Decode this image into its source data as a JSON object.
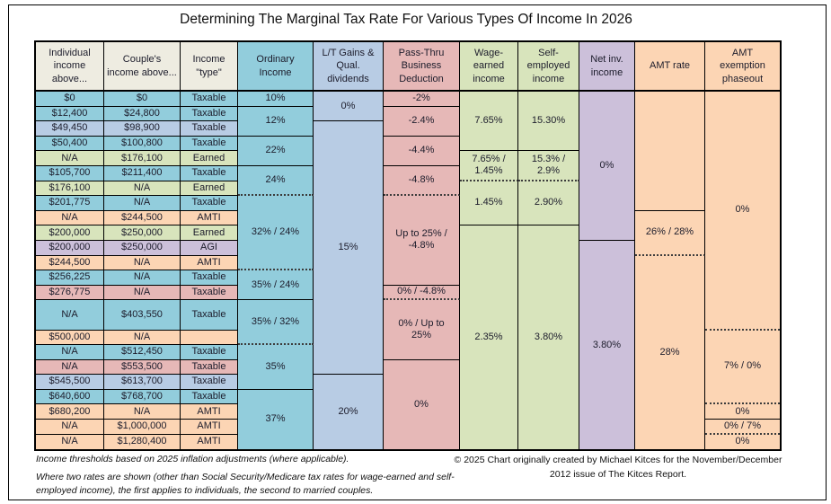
{
  "chart_data": {
    "type": "table",
    "title": "Determining The Marginal Tax Rate For Various Types Of Income In 2026",
    "columns": [
      {
        "name": "individual-income-above",
        "label": "Individual\nincome\nabove...",
        "color_key": "beige"
      },
      {
        "name": "couples-income-above",
        "label": "Couple's\nincome above...",
        "color_key": "beige"
      },
      {
        "name": "income-type",
        "label": "Income\n\"type\"",
        "color_key": "beige"
      },
      {
        "name": "ordinary-income",
        "label": "Ordinary\nIncome",
        "color_key": "teal"
      },
      {
        "name": "lt-gains-qual-dividends",
        "label": "L/T Gains &\nQual.\ndividends",
        "color_key": "blue"
      },
      {
        "name": "pass-thru-business-deduction",
        "label": "Pass-Thru\nBusiness\nDeduction",
        "color_key": "rose"
      },
      {
        "name": "wage-earned-income",
        "label": "Wage-\nearned\nincome",
        "color_key": "green"
      },
      {
        "name": "self-employed-income",
        "label": "Self-\nemployed\nincome",
        "color_key": "green"
      },
      {
        "name": "net-inv-income",
        "label": "Net inv.\nincome",
        "color_key": "purple"
      },
      {
        "name": "amt-rate",
        "label": "AMT rate",
        "color_key": "orange"
      },
      {
        "name": "amt-exemption-phaseout",
        "label": "AMT\nexemption\nphaseout",
        "color_key": "orange"
      }
    ],
    "income_rows": [
      {
        "individual": "$0",
        "couple": "$0",
        "type": "Taxable",
        "color_key": "teal",
        "units": 1
      },
      {
        "individual": "$12,400",
        "couple": "$24,800",
        "type": "Taxable",
        "color_key": "teal",
        "units": 1
      },
      {
        "individual": "$49,450",
        "couple": "$98,900",
        "type": "Taxable",
        "color_key": "blue",
        "units": 1
      },
      {
        "individual": "$50,400",
        "couple": "$100,800",
        "type": "Taxable",
        "color_key": "teal",
        "units": 1
      },
      {
        "individual": "N/A",
        "couple": "$176,100",
        "type": "Earned",
        "color_key": "green",
        "units": 1
      },
      {
        "individual": "$105,700",
        "couple": "$211,400",
        "type": "Taxable",
        "color_key": "teal",
        "units": 1
      },
      {
        "individual": "$176,100",
        "couple": "N/A",
        "type": "Earned",
        "color_key": "green",
        "units": 1
      },
      {
        "individual": "$201,775",
        "couple": "N/A",
        "type": "Taxable",
        "color_key": "teal",
        "units": 1
      },
      {
        "individual": "N/A",
        "couple": "$244,500",
        "type": "AMTI",
        "color_key": "orange",
        "units": 1
      },
      {
        "individual": "$200,000",
        "couple": "$250,000",
        "type": "Earned",
        "color_key": "green",
        "units": 1
      },
      {
        "individual": "$200,000",
        "couple": "$250,000",
        "type": "AGI",
        "color_key": "purple",
        "units": 1
      },
      {
        "individual": "$244,500",
        "couple": "N/A",
        "type": "AMTI",
        "color_key": "orange",
        "units": 1
      },
      {
        "individual": "$256,225",
        "couple": "N/A",
        "type": "Taxable",
        "color_key": "teal",
        "units": 1
      },
      {
        "individual": "$276,775",
        "couple": "N/A",
        "type": "Taxable",
        "color_key": "rose",
        "units": 1
      },
      {
        "individual": "N/A",
        "couple": "$403,550",
        "type": "Taxable",
        "color_key": "teal",
        "units": 2
      },
      {
        "individual": "$500,000",
        "couple": "N/A",
        "type": "",
        "color_key": "orange",
        "units": 1
      },
      {
        "individual": "N/A",
        "couple": "$512,450",
        "type": "Taxable",
        "color_key": "teal",
        "units": 1
      },
      {
        "individual": "N/A",
        "couple": "$553,500",
        "type": "Taxable",
        "color_key": "rose",
        "units": 1
      },
      {
        "individual": "$545,500",
        "couple": "$613,700",
        "type": "Taxable",
        "color_key": "blue",
        "units": 1
      },
      {
        "individual": "$640,600",
        "couple": "$768,700",
        "type": "Taxable",
        "color_key": "teal",
        "units": 1
      },
      {
        "individual": "$680,200",
        "couple": "N/A",
        "type": "AMTI",
        "color_key": "orange",
        "units": 1
      },
      {
        "individual": "N/A",
        "couple": "$1,000,000",
        "type": "AMTI",
        "color_key": "orange",
        "units": 1
      },
      {
        "individual": "N/A",
        "couple": "$1,280,400",
        "type": "AMTI",
        "color_key": "orange",
        "units": 1
      }
    ],
    "rate_columns": [
      {
        "name": "ordinary-income",
        "col": 4,
        "color_key": "teal",
        "cells": [
          {
            "text": "10%",
            "span": 1
          },
          {
            "text": "12%",
            "span": 2
          },
          {
            "text": "22%",
            "span": 2
          },
          {
            "text": "24%",
            "span": 2,
            "dotted_bottom": true
          },
          {
            "text": "32% / 24%",
            "span": 5,
            "dotted_bottom": true
          },
          {
            "text": "35% / 24%",
            "span": 2
          },
          {
            "text": "35% / 32%",
            "span": 3,
            "dotted_bottom": true
          },
          {
            "text": "35%",
            "span": 3
          },
          {
            "text": "37%",
            "span": 4
          }
        ]
      },
      {
        "name": "lt-gains",
        "col": 5,
        "color_key": "blue",
        "cells": [
          {
            "text": "0%",
            "span": 2
          },
          {
            "text": "15%",
            "span": 17
          },
          {
            "text": "20%",
            "span": 5
          }
        ]
      },
      {
        "name": "pass-thru",
        "col": 6,
        "color_key": "rose",
        "cells": [
          {
            "text": "-2%",
            "span": 1
          },
          {
            "text": "-2.4%",
            "span": 2
          },
          {
            "text": "-4.4%",
            "span": 2
          },
          {
            "text": "-4.8%",
            "span": 2,
            "dotted_bottom": true
          },
          {
            "text": "Up to 25% /\n-4.8%",
            "span": 6
          },
          {
            "text": "0% / -4.8%",
            "span": 1,
            "dotted_bottom": true
          },
          {
            "text": "0% / Up to\n25%",
            "span": 4
          },
          {
            "text": "0%",
            "span": 6
          }
        ]
      },
      {
        "name": "wage-earned",
        "col": 7,
        "color_key": "green",
        "cells": [
          {
            "text": "7.65%",
            "span": 4
          },
          {
            "text": "7.65% /\n1.45%",
            "span": 2,
            "dotted_bottom": true
          },
          {
            "text": "1.45%",
            "span": 3
          },
          {
            "text": "2.35%",
            "span": 15
          }
        ]
      },
      {
        "name": "self-employed",
        "col": 8,
        "color_key": "green",
        "cells": [
          {
            "text": "15.30%",
            "span": 4
          },
          {
            "text": "15.3% /\n2.9%",
            "span": 2,
            "dotted_bottom": true
          },
          {
            "text": "2.90%",
            "span": 3
          },
          {
            "text": "3.80%",
            "span": 15
          }
        ]
      },
      {
        "name": "net-inv",
        "col": 9,
        "color_key": "purple",
        "cells": [
          {
            "text": "0%",
            "span": 10
          },
          {
            "text": "3.80%",
            "span": 14
          }
        ]
      },
      {
        "name": "amt-rate",
        "col": 10,
        "color_key": "orange",
        "cells": [
          {
            "text": "",
            "span": 8
          },
          {
            "text": "26% / 28%",
            "span": 3,
            "dotted_bottom": true
          },
          {
            "text": "28%",
            "span": 13
          }
        ]
      },
      {
        "name": "amt-exemption",
        "col": 11,
        "color_key": "orange",
        "cells": [
          {
            "text": "0%",
            "span": 16,
            "dotted_bottom": true
          },
          {
            "text": "7% / 0%",
            "span": 5,
            "dotted_bottom": true
          },
          {
            "text": "0%",
            "span": 1
          },
          {
            "text": "0% / 7%",
            "span": 1,
            "dotted_bottom": true
          },
          {
            "text": "0%",
            "span": 1
          }
        ]
      }
    ]
  },
  "colors": {
    "beige": "#EEECE1",
    "teal": "#92CDDC",
    "blue": "#B8CCE4",
    "rose": "#E6B8B7",
    "green": "#D8E4BC",
    "purple": "#CCC0DA",
    "orange": "#FCD5B4"
  },
  "footnotes": {
    "note1": "Income thresholds based on 2025 inflation adjustments (where applicable).",
    "note2": "Where two rates are shown (other than Social Security/Medicare tax rates for wage-earned and self-employed income), the first applies to individuals, the second to married couples.",
    "credit": "© 2025 Chart originally created by Michael Kitces for the November/December 2012 issue of The Kitces Report."
  }
}
